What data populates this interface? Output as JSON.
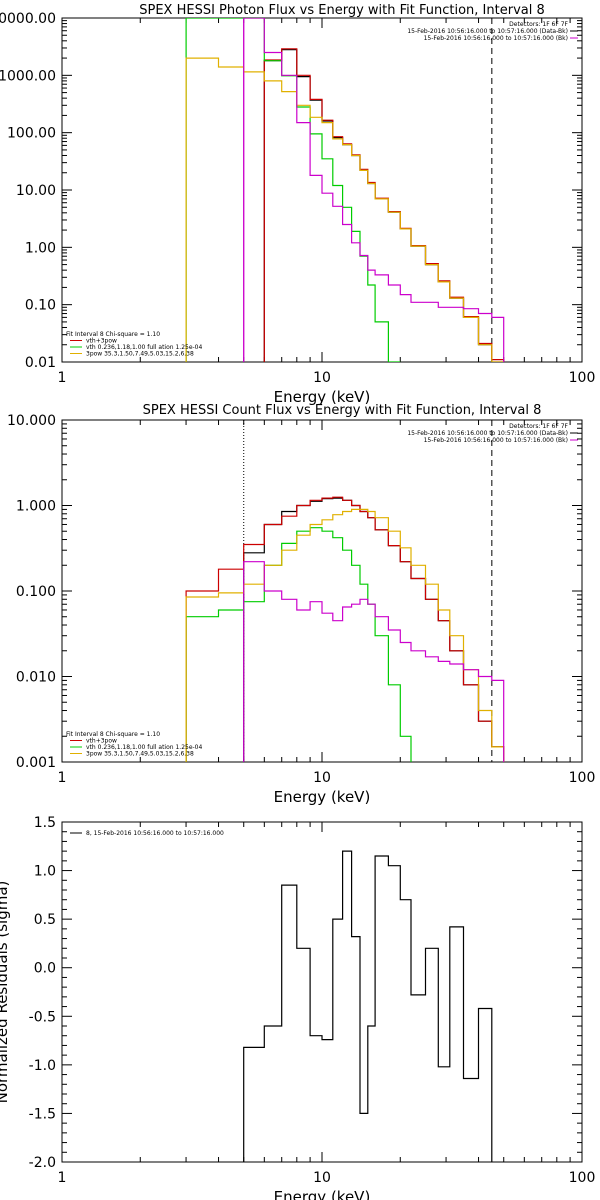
{
  "chart_data": [
    {
      "type": "line",
      "title": "SPEX HESSI Photon Flux vs Energy with Fit Function, Interval 8",
      "xlabel": "Energy (keV)",
      "ylabel": "",
      "x_scale": "log",
      "y_scale": "log",
      "xlim": [
        1,
        100
      ],
      "ylim": [
        0.01,
        10000
      ],
      "x_tick_labels": [
        "1",
        "10",
        "100"
      ],
      "y_tick_labels": [
        "10000.00",
        "1000.00",
        "100.00",
        "10.00",
        "1.00",
        "0.10",
        "0.01"
      ],
      "legend_right": [
        {
          "text": "Detectors: 1F 6F 7F",
          "color": ""
        },
        {
          "text": "15-Feb-2016 10:56:16.000 to 10:57:16.000 (Data-Bk)",
          "color": "#000000"
        },
        {
          "text": "15-Feb-2016 10:56:16.000 to 10:57:16.000 (Bk)",
          "color": "#cc00cc"
        }
      ],
      "legend_left": [
        {
          "text": "Fit Interval 8   Chi-square = 1.10",
          "color": ""
        },
        {
          "text": "vth+3pow",
          "color": "#cc0000"
        },
        {
          "text": "vth 0.236,1.18,1.00  full ation 1.25e-04",
          "color": "#00cc00"
        },
        {
          "text": "3pow 35.3,1.50,7.49,5.03,15.2,6.38",
          "color": "#e0b000"
        }
      ],
      "markers": [
        {
          "x": 5,
          "style": "solid",
          "color": "#cc00cc"
        },
        {
          "x": 45,
          "style": "dashed",
          "color": "#000000"
        }
      ],
      "bin_edges": [
        3,
        4,
        5,
        6,
        7,
        8,
        9,
        10,
        11,
        12,
        13,
        14,
        15,
        16,
        18,
        20,
        22,
        25,
        28,
        31,
        35,
        40,
        45,
        50
      ],
      "series": [
        {
          "name": "Data-Bk",
          "color": "#000000",
          "values": [
            null,
            null,
            null,
            1800,
            2800,
            950,
            370,
            160,
            82,
            62,
            40,
            22,
            13,
            7,
            4.1,
            2.1,
            1.05,
            0.5,
            0.25,
            0.13,
            0.06,
            0.02,
            0.01
          ]
        },
        {
          "name": "vth+3pow",
          "color": "#cc0000",
          "values": [
            null,
            null,
            null,
            1850,
            2900,
            1000,
            380,
            165,
            85,
            64,
            41,
            23,
            13.5,
            7.2,
            4.2,
            2.15,
            1.07,
            0.52,
            0.26,
            0.135,
            0.062,
            0.021,
            0.011
          ]
        },
        {
          "name": "vth",
          "color": "#00cc00",
          "values": [
            10000,
            10000,
            10000,
            1800,
            980,
            280,
            95,
            35,
            12,
            5,
            1.9,
            0.7,
            0.22,
            0.05,
            0.01,
            null,
            null,
            null,
            null,
            null,
            null,
            null,
            null
          ]
        },
        {
          "name": "3pow",
          "color": "#e0b000",
          "values": [
            2000,
            1400,
            1150,
            800,
            520,
            300,
            185,
            150,
            78,
            62,
            40,
            22,
            13,
            7,
            4.1,
            2.1,
            1.05,
            0.5,
            0.25,
            0.13,
            0.06,
            0.02,
            0.01
          ]
        },
        {
          "name": "Bk",
          "color": "#cc00cc",
          "values": [
            null,
            null,
            10000,
            2500,
            1000,
            150,
            18,
            8.8,
            5.2,
            2.5,
            1.2,
            0.72,
            0.4,
            0.33,
            0.22,
            0.15,
            0.11,
            0.11,
            0.09,
            0.09,
            0.085,
            0.07,
            0.06
          ]
        }
      ]
    },
    {
      "type": "line",
      "title": "SPEX HESSI Count Flux vs Energy with Fit Function, Interval 8",
      "xlabel": "Energy (keV)",
      "ylabel": "",
      "x_scale": "log",
      "y_scale": "log",
      "xlim": [
        1,
        100
      ],
      "ylim": [
        0.001,
        10
      ],
      "x_tick_labels": [
        "1",
        "10",
        "100"
      ],
      "y_tick_labels": [
        "10.000",
        "1.000",
        "0.100",
        "0.010",
        "0.001"
      ],
      "legend_right": [
        {
          "text": "Detectors: 1F 6F 7F",
          "color": ""
        },
        {
          "text": "15-Feb-2016 10:56:16.000 to 10:57:16.000 (Data-Bk)",
          "color": "#000000"
        },
        {
          "text": "15-Feb-2016 10:56:16.000 to 10:57:16.000 (Bk)",
          "color": "#cc00cc"
        }
      ],
      "legend_left": [
        {
          "text": "Fit Interval 8   Chi-square = 1.10",
          "color": ""
        },
        {
          "text": "vth+3pow",
          "color": "#cc0000"
        },
        {
          "text": "vth 0.236,1.18,1.00  full ation 1.25e-04",
          "color": "#00cc00"
        },
        {
          "text": "3pow 35.3,1.50,7.49,5.03,15.2,6.38",
          "color": "#e0b000"
        }
      ],
      "markers": [
        {
          "x": 5,
          "style": "dotted",
          "color": "#000000"
        },
        {
          "x": 45,
          "style": "dashed",
          "color": "#000000"
        }
      ],
      "bin_edges": [
        3,
        4,
        5,
        6,
        7,
        8,
        9,
        10,
        11,
        12,
        13,
        14,
        15,
        16,
        18,
        20,
        22,
        25,
        28,
        31,
        35,
        40,
        45,
        50
      ],
      "series": [
        {
          "name": "Data-Bk",
          "color": "#000000",
          "values": [
            null,
            null,
            0.28,
            0.6,
            0.85,
            1.0,
            1.12,
            1.2,
            1.22,
            1.15,
            1.0,
            0.85,
            0.72,
            0.52,
            0.34,
            0.22,
            0.14,
            0.08,
            0.045,
            0.02,
            0.008,
            0.003,
            0.0015
          ]
        },
        {
          "name": "vth+3pow",
          "color": "#cc0000",
          "values": [
            0.1,
            0.18,
            0.35,
            0.6,
            0.75,
            1.0,
            1.15,
            1.22,
            1.25,
            1.15,
            1.0,
            0.85,
            0.72,
            0.52,
            0.34,
            0.22,
            0.14,
            0.08,
            0.045,
            0.02,
            0.008,
            0.003,
            0.0015
          ]
        },
        {
          "name": "vth",
          "color": "#00cc00",
          "values": [
            0.05,
            0.06,
            0.075,
            0.2,
            0.36,
            0.5,
            0.55,
            0.5,
            0.42,
            0.3,
            0.2,
            0.12,
            0.07,
            0.03,
            0.008,
            0.002,
            null,
            null,
            null,
            null,
            null,
            null,
            null
          ]
        },
        {
          "name": "3pow",
          "color": "#e0b000",
          "values": [
            0.085,
            0.095,
            0.12,
            0.2,
            0.3,
            0.45,
            0.6,
            0.68,
            0.78,
            0.85,
            0.9,
            0.9,
            0.85,
            0.72,
            0.5,
            0.32,
            0.2,
            0.12,
            0.06,
            0.03,
            0.012,
            0.004,
            0.0015
          ]
        },
        {
          "name": "Bk",
          "color": "#cc00cc",
          "values": [
            null,
            null,
            0.22,
            0.1,
            0.08,
            0.06,
            0.075,
            0.055,
            0.045,
            0.065,
            0.07,
            0.08,
            0.07,
            0.05,
            0.035,
            0.025,
            0.02,
            0.017,
            0.015,
            0.014,
            0.012,
            0.01,
            0.009
          ]
        }
      ]
    },
    {
      "type": "line",
      "title": "",
      "xlabel": "Energy (keV)",
      "ylabel": "Normalized Residuals (sigma)",
      "x_scale": "log",
      "y_scale": "linear",
      "xlim": [
        1,
        100
      ],
      "ylim": [
        -2.0,
        1.5
      ],
      "x_tick_labels": [
        "1",
        "10",
        "100"
      ],
      "y_tick_labels": [
        "1.5",
        "1.0",
        "0.5",
        "0.0",
        "-0.5",
        "-1.0",
        "-1.5",
        "-2.0"
      ],
      "y_ticks": [
        1.5,
        1.0,
        0.5,
        0.0,
        -0.5,
        -1.0,
        -1.5,
        -2.0
      ],
      "legend_left": [
        {
          "text": "8, 15-Feb-2016 10:56:16.000 to 10:57:16.000",
          "color": "#000000"
        }
      ],
      "markers": [],
      "bin_edges": [
        5,
        6,
        7,
        8,
        9,
        10,
        11,
        12,
        13,
        14,
        15,
        16,
        18,
        20,
        22,
        25,
        28,
        31,
        35,
        40,
        45
      ],
      "series": [
        {
          "name": "residuals",
          "color": "#000000",
          "values": [
            -0.82,
            -0.6,
            0.85,
            0.2,
            -0.7,
            -0.74,
            0.5,
            1.2,
            0.32,
            -1.5,
            -0.6,
            1.15,
            1.05,
            0.7,
            -0.28,
            0.2,
            -1.02,
            0.42,
            -1.14,
            -0.42
          ]
        }
      ]
    }
  ]
}
